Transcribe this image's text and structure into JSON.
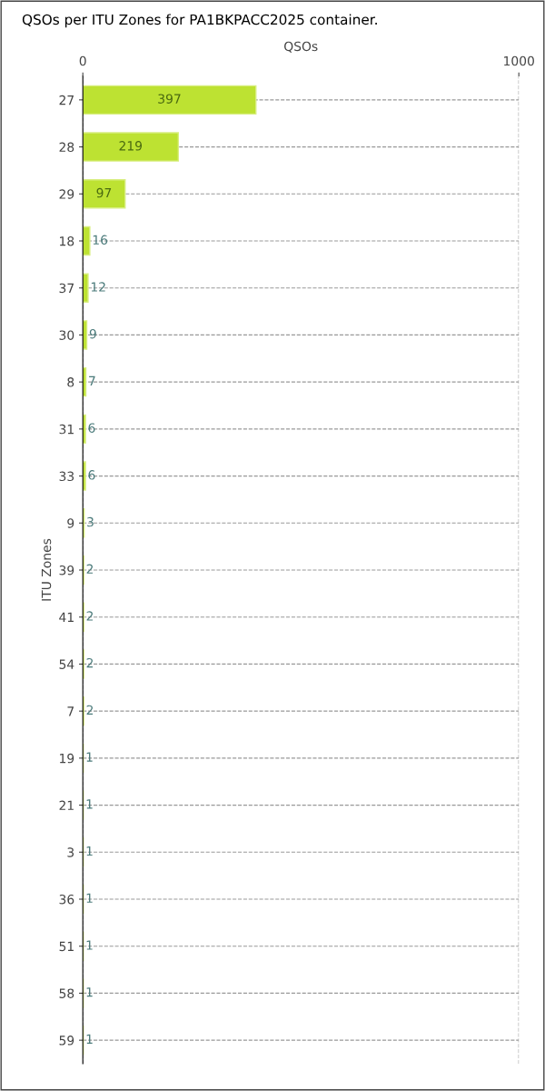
{
  "chart_data": {
    "type": "bar",
    "orientation": "horizontal",
    "title": "QSOs per ITU Zones for PA1BKPACC2025 container.",
    "xlabel": "QSOs",
    "ylabel": "ITU Zones",
    "categories": [
      "27",
      "28",
      "29",
      "18",
      "37",
      "30",
      "8",
      "31",
      "33",
      "9",
      "39",
      "41",
      "54",
      "7",
      "19",
      "21",
      "3",
      "36",
      "51",
      "58",
      "59"
    ],
    "values": [
      397,
      219,
      97,
      16,
      12,
      9,
      7,
      6,
      6,
      3,
      2,
      2,
      2,
      2,
      1,
      1,
      1,
      1,
      1,
      1,
      1
    ],
    "color": "#bde232",
    "xlim": [
      0,
      1000
    ],
    "xticks": [
      0,
      1000
    ],
    "grid": true,
    "data_labels": true
  }
}
